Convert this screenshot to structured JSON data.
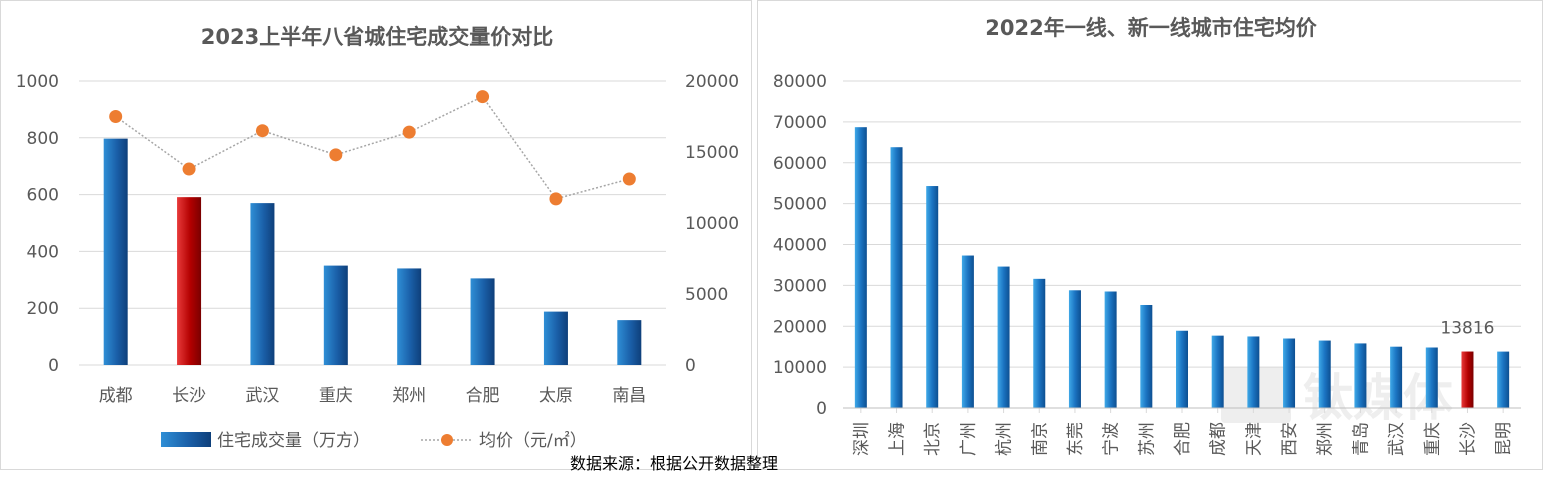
{
  "source_note": "数据来源：根据公开数据整理",
  "watermark": "钛媒体",
  "colors": {
    "bar_blue": "#1f6fb5",
    "bar_red": "#c00000",
    "line_orange": "#ed7d31",
    "grid": "#d9d9d9",
    "text": "#595959"
  },
  "chart_data": [
    {
      "type": "bar+line",
      "title": "2023上半年八省城住宅成交量价对比",
      "categories": [
        "成都",
        "长沙",
        "武汉",
        "重庆",
        "郑州",
        "合肥",
        "太原",
        "南昌"
      ],
      "highlight_category": "长沙",
      "y_left": {
        "ticks": [
          "0",
          "200",
          "400",
          "600",
          "800",
          "1000"
        ],
        "range": [
          0,
          1000
        ]
      },
      "y_right": {
        "ticks": [
          "0",
          "5000",
          "10000",
          "15000",
          "20000"
        ],
        "range": [
          0,
          20000
        ]
      },
      "series": [
        {
          "name": "住宅成交量（万方）",
          "type": "bar",
          "axis": "left",
          "values": [
            797,
            591,
            570,
            350,
            340,
            305,
            188,
            158
          ]
        },
        {
          "name": "均价（元/㎡）",
          "type": "line",
          "axis": "right",
          "values": [
            17500,
            13800,
            16500,
            14800,
            16400,
            18900,
            11700,
            13100
          ]
        }
      ],
      "grid": true,
      "legend": "bottom"
    },
    {
      "type": "bar",
      "title": "2022年一线、新一线城市住宅均价",
      "categories": [
        "深圳",
        "上海",
        "北京",
        "广州",
        "杭州",
        "南京",
        "东莞",
        "宁波",
        "苏州",
        "合肥",
        "成都",
        "天津",
        "西安",
        "郑州",
        "青岛",
        "武汉",
        "重庆",
        "长沙",
        "昆明"
      ],
      "values": [
        68700,
        63800,
        54300,
        37300,
        34600,
        31600,
        28800,
        28500,
        25200,
        18900,
        17700,
        17500,
        17000,
        16500,
        15800,
        15000,
        14800,
        13816,
        13800
      ],
      "highlight_category": "长沙",
      "highlight_label": "13816",
      "y_ticks": [
        "0",
        "10000",
        "20000",
        "30000",
        "40000",
        "50000",
        "60000",
        "70000",
        "80000"
      ],
      "ylim": [
        0,
        80000
      ],
      "grid": true
    }
  ]
}
